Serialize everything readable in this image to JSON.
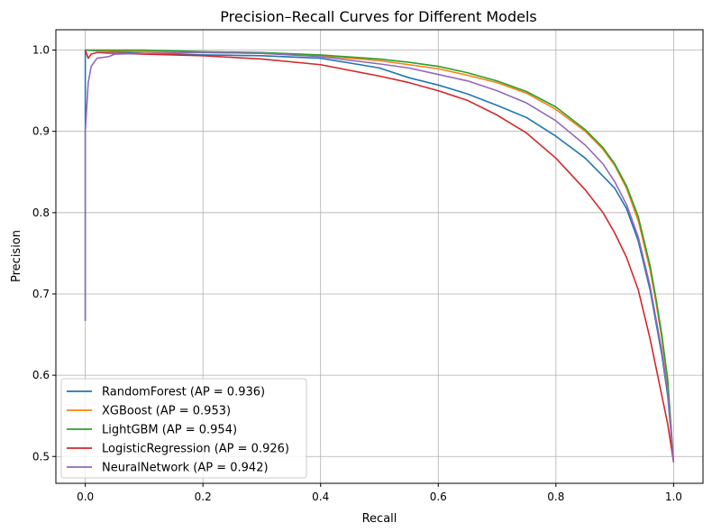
{
  "chart_data": {
    "type": "line",
    "title": "Precision–Recall Curves for Different Models",
    "xlabel": "Recall",
    "ylabel": "Precision",
    "xlim": [
      -0.05,
      1.05
    ],
    "ylim": [
      0.467,
      1.025
    ],
    "xticks": [
      0.0,
      0.2,
      0.4,
      0.6,
      0.8,
      1.0
    ],
    "yticks": [
      0.5,
      0.6,
      0.7,
      0.8,
      0.9,
      1.0
    ],
    "xtick_labels": [
      "0.0",
      "0.2",
      "0.4",
      "0.6",
      "0.8",
      "1.0"
    ],
    "ytick_labels": [
      "0.5",
      "0.6",
      "0.7",
      "0.8",
      "0.9",
      "1.0"
    ],
    "grid": true,
    "legend_position": "lower-left",
    "series": [
      {
        "name": "RandomForest (AP = 0.936)",
        "color": "#1f77b4",
        "x": [
          0.0,
          0.0,
          0.05,
          0.1,
          0.2,
          0.3,
          0.4,
          0.5,
          0.55,
          0.6,
          0.65,
          0.7,
          0.75,
          0.8,
          0.85,
          0.88,
          0.9,
          0.92,
          0.94,
          0.96,
          0.97,
          0.98,
          0.99,
          1.0
        ],
        "y": [
          0.667,
          1.0,
          0.998,
          0.996,
          0.994,
          0.993,
          0.99,
          0.978,
          0.966,
          0.957,
          0.946,
          0.932,
          0.917,
          0.894,
          0.867,
          0.845,
          0.83,
          0.805,
          0.765,
          0.705,
          0.665,
          0.625,
          0.575,
          0.493
        ]
      },
      {
        "name": "XGBoost (AP = 0.953)",
        "color": "#ff7f0e",
        "x": [
          0.0,
          0.0,
          0.05,
          0.1,
          0.2,
          0.3,
          0.4,
          0.5,
          0.55,
          0.6,
          0.65,
          0.7,
          0.75,
          0.8,
          0.85,
          0.88,
          0.9,
          0.92,
          0.94,
          0.96,
          0.97,
          0.98,
          0.99,
          1.0
        ],
        "y": [
          1.0,
          1.0,
          0.999,
          0.998,
          0.997,
          0.996,
          0.993,
          0.987,
          0.982,
          0.977,
          0.969,
          0.96,
          0.947,
          0.927,
          0.9,
          0.878,
          0.858,
          0.83,
          0.79,
          0.73,
          0.69,
          0.645,
          0.59,
          0.493
        ]
      },
      {
        "name": "LightGBM (AP = 0.954)",
        "color": "#2ca02c",
        "x": [
          0.0,
          0.0,
          0.05,
          0.1,
          0.2,
          0.3,
          0.4,
          0.5,
          0.55,
          0.6,
          0.65,
          0.7,
          0.75,
          0.8,
          0.85,
          0.88,
          0.9,
          0.92,
          0.94,
          0.96,
          0.97,
          0.98,
          0.99,
          1.0
        ],
        "y": [
          1.0,
          1.0,
          1.0,
          1.0,
          0.998,
          0.997,
          0.994,
          0.989,
          0.985,
          0.98,
          0.972,
          0.962,
          0.949,
          0.93,
          0.902,
          0.88,
          0.86,
          0.833,
          0.795,
          0.735,
          0.695,
          0.65,
          0.595,
          0.493
        ]
      },
      {
        "name": "LogisticRegression (AP = 0.926)",
        "color": "#d62728",
        "x": [
          0.0,
          0.0,
          0.005,
          0.01,
          0.02,
          0.05,
          0.1,
          0.2,
          0.3,
          0.4,
          0.5,
          0.55,
          0.6,
          0.65,
          0.7,
          0.75,
          0.8,
          0.85,
          0.88,
          0.9,
          0.92,
          0.94,
          0.96,
          0.97,
          0.98,
          0.99,
          1.0
        ],
        "y": [
          1.0,
          1.0,
          0.99,
          0.995,
          0.997,
          0.996,
          0.995,
          0.993,
          0.989,
          0.982,
          0.968,
          0.96,
          0.95,
          0.938,
          0.92,
          0.898,
          0.867,
          0.828,
          0.8,
          0.775,
          0.745,
          0.705,
          0.645,
          0.61,
          0.575,
          0.54,
          0.493
        ]
      },
      {
        "name": "NeuralNetwork (AP = 0.942)",
        "color": "#9467bd",
        "x": [
          0.0,
          0.0,
          0.005,
          0.01,
          0.02,
          0.04,
          0.05,
          0.1,
          0.2,
          0.3,
          0.4,
          0.5,
          0.55,
          0.6,
          0.65,
          0.7,
          0.75,
          0.8,
          0.85,
          0.88,
          0.9,
          0.92,
          0.94,
          0.96,
          0.97,
          0.98,
          0.99,
          1.0
        ],
        "y": [
          0.667,
          0.9,
          0.96,
          0.98,
          0.99,
          0.992,
          0.995,
          0.996,
          0.997,
          0.996,
          0.992,
          0.983,
          0.978,
          0.97,
          0.962,
          0.95,
          0.935,
          0.913,
          0.883,
          0.86,
          0.838,
          0.81,
          0.77,
          0.71,
          0.67,
          0.63,
          0.58,
          0.493
        ]
      }
    ]
  }
}
